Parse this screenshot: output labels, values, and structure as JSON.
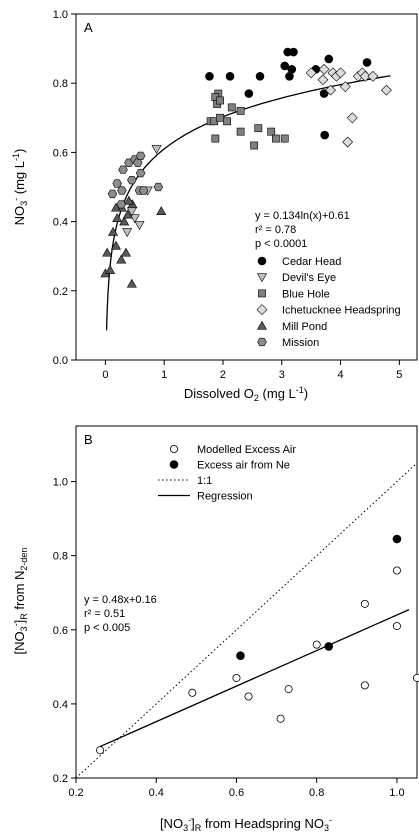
{
  "chart_data": [
    {
      "panel_label": "A",
      "type": "scatter",
      "xlabel": "Dissolved O₂ (mg L⁻¹)",
      "ylabel": "NO₃⁻ (mg L⁻¹)",
      "xlim": [
        -0.5,
        5.3
      ],
      "ylim": [
        0.0,
        1.0
      ],
      "xticks": [
        "0",
        "1",
        "2",
        "3",
        "4",
        "5"
      ],
      "yticks": [
        "0.0",
        "0.2",
        "0.4",
        "0.6",
        "0.8",
        "1.0"
      ],
      "legend_position": "lower-right",
      "annotation": {
        "equation": "y = 0.134ln(x)+0.61",
        "r2": "r² = 0.78",
        "p": "p < 0.0001"
      },
      "fit": {
        "kind": "log",
        "a": 0.134,
        "b": 0.61,
        "x_from": 0.02,
        "x_to": 4.85
      },
      "series": [
        {
          "name": "Cedar Head",
          "marker": "circle",
          "color": "#000000",
          "points": [
            [
              1.77,
              0.82
            ],
            [
              2.12,
              0.82
            ],
            [
              2.44,
              0.77
            ],
            [
              2.63,
              0.82
            ],
            [
              3.05,
              0.85
            ],
            [
              3.1,
              0.89
            ],
            [
              3.2,
              0.89
            ],
            [
              3.13,
              0.82
            ],
            [
              3.17,
              0.84
            ],
            [
              3.58,
              0.84
            ],
            [
              3.8,
              0.87
            ],
            [
              3.72,
              0.77
            ],
            [
              3.73,
              0.65
            ],
            [
              4.45,
              0.86
            ]
          ]
        },
        {
          "name": "Devil's Eye",
          "marker": "triangle-down",
          "color": "#bfbfbf",
          "points": [
            [
              0.37,
              0.37
            ],
            [
              0.5,
              0.41
            ],
            [
              0.45,
              0.43
            ],
            [
              0.58,
              0.39
            ],
            [
              0.72,
              0.49
            ],
            [
              0.87,
              0.61
            ]
          ]
        },
        {
          "name": "Blue Hole",
          "marker": "square",
          "color": "#7f7f7f",
          "points": [
            [
              1.92,
              0.77
            ],
            [
              1.87,
              0.76
            ],
            [
              1.9,
              0.74
            ],
            [
              1.79,
              0.69
            ],
            [
              1.87,
              0.64
            ],
            [
              1.95,
              0.75
            ],
            [
              2.07,
              0.69
            ],
            [
              2.15,
              0.73
            ],
            [
              2.3,
              0.72
            ],
            [
              2.3,
              0.66
            ],
            [
              2.53,
              0.62
            ],
            [
              2.82,
              0.66
            ],
            [
              2.9,
              0.64
            ],
            [
              3.05,
              0.64
            ],
            [
              1.85,
              0.69
            ],
            [
              1.95,
              0.7
            ],
            [
              2.6,
              0.67
            ]
          ]
        },
        {
          "name": "Ichetucknee Headspring",
          "marker": "diamond",
          "color": "#dcdcdc",
          "points": [
            [
              3.7,
              0.81
            ],
            [
              3.72,
              0.84
            ],
            [
              3.87,
              0.83
            ],
            [
              3.93,
              0.82
            ],
            [
              4.0,
              0.83
            ],
            [
              4.08,
              0.79
            ],
            [
              4.3,
              0.82
            ],
            [
              4.37,
              0.83
            ],
            [
              4.42,
              0.82
            ],
            [
              4.55,
              0.82
            ],
            [
              4.78,
              0.78
            ],
            [
              4.2,
              0.7
            ],
            [
              4.12,
              0.63
            ],
            [
              3.83,
              0.78
            ],
            [
              3.5,
              0.83
            ]
          ]
        },
        {
          "name": "Mill Pond",
          "marker": "triangle-up",
          "color": "#595959",
          "points": [
            [
              0.0,
              0.25
            ],
            [
              0.08,
              0.26
            ],
            [
              0.03,
              0.31
            ],
            [
              0.18,
              0.33
            ],
            [
              0.27,
              0.29
            ],
            [
              0.45,
              0.22
            ],
            [
              0.35,
              0.31
            ],
            [
              0.2,
              0.41
            ],
            [
              0.28,
              0.44
            ],
            [
              0.32,
              0.4
            ],
            [
              0.38,
              0.42
            ],
            [
              0.46,
              0.45
            ],
            [
              0.18,
              0.44
            ],
            [
              0.4,
              0.46
            ],
            [
              0.95,
              0.43
            ],
            [
              0.13,
              0.37
            ]
          ]
        },
        {
          "name": "Mission",
          "marker": "hexagon",
          "color": "#8c8c8c",
          "points": [
            [
              0.12,
              0.48
            ],
            [
              0.2,
              0.51
            ],
            [
              0.27,
              0.45
            ],
            [
              0.28,
              0.49
            ],
            [
              0.3,
              0.55
            ],
            [
              0.4,
              0.57
            ],
            [
              0.45,
              0.52
            ],
            [
              0.5,
              0.58
            ],
            [
              0.55,
              0.57
            ],
            [
              0.6,
              0.59
            ],
            [
              0.6,
              0.54
            ],
            [
              0.58,
              0.49
            ],
            [
              0.9,
              0.5
            ],
            [
              0.65,
              0.49
            ]
          ]
        }
      ]
    },
    {
      "panel_label": "B",
      "type": "scatter",
      "xlabel": "[NO₃⁻]R from Headspring NO₃⁻",
      "ylabel": "[NO₃⁻]R from N₂-den",
      "xlim": [
        0.2,
        1.05
      ],
      "ylim": [
        0.2,
        1.15
      ],
      "xticks": [
        "0.2",
        "0.4",
        "0.6",
        "0.8",
        "1.0"
      ],
      "yticks": [
        "0.2",
        "0.4",
        "0.6",
        "0.8",
        "1.0"
      ],
      "legend_position": "top-left",
      "annotation": {
        "equation": "y = 0.48x+0.16",
        "r2": "r² = 0.51",
        "p": "p < 0.005"
      },
      "fit": {
        "kind": "linear",
        "m": 0.48,
        "b": 0.16,
        "x_from": 0.26,
        "x_to": 1.03
      },
      "identity_line": {
        "name": "1:1",
        "x_from": 0.2,
        "x_to": 1.05
      },
      "regression_name": "Regression",
      "series": [
        {
          "name": "Modelled Excess Air",
          "marker": "open-circle",
          "color": "#000000",
          "points": [
            [
              0.26,
              0.275
            ],
            [
              0.49,
              0.43
            ],
            [
              0.6,
              0.47
            ],
            [
              0.63,
              0.42
            ],
            [
              0.71,
              0.36
            ],
            [
              0.73,
              0.44
            ],
            [
              0.8,
              0.56
            ],
            [
              0.92,
              0.67
            ],
            [
              0.92,
              0.45
            ],
            [
              1.0,
              0.61
            ],
            [
              1.0,
              0.76
            ],
            [
              1.05,
              0.47
            ]
          ]
        },
        {
          "name": "Excess air from Ne",
          "marker": "filled-circle",
          "color": "#000000",
          "points": [
            [
              0.61,
              0.53
            ],
            [
              0.83,
              0.555
            ],
            [
              1.0,
              0.845
            ]
          ]
        }
      ]
    }
  ]
}
